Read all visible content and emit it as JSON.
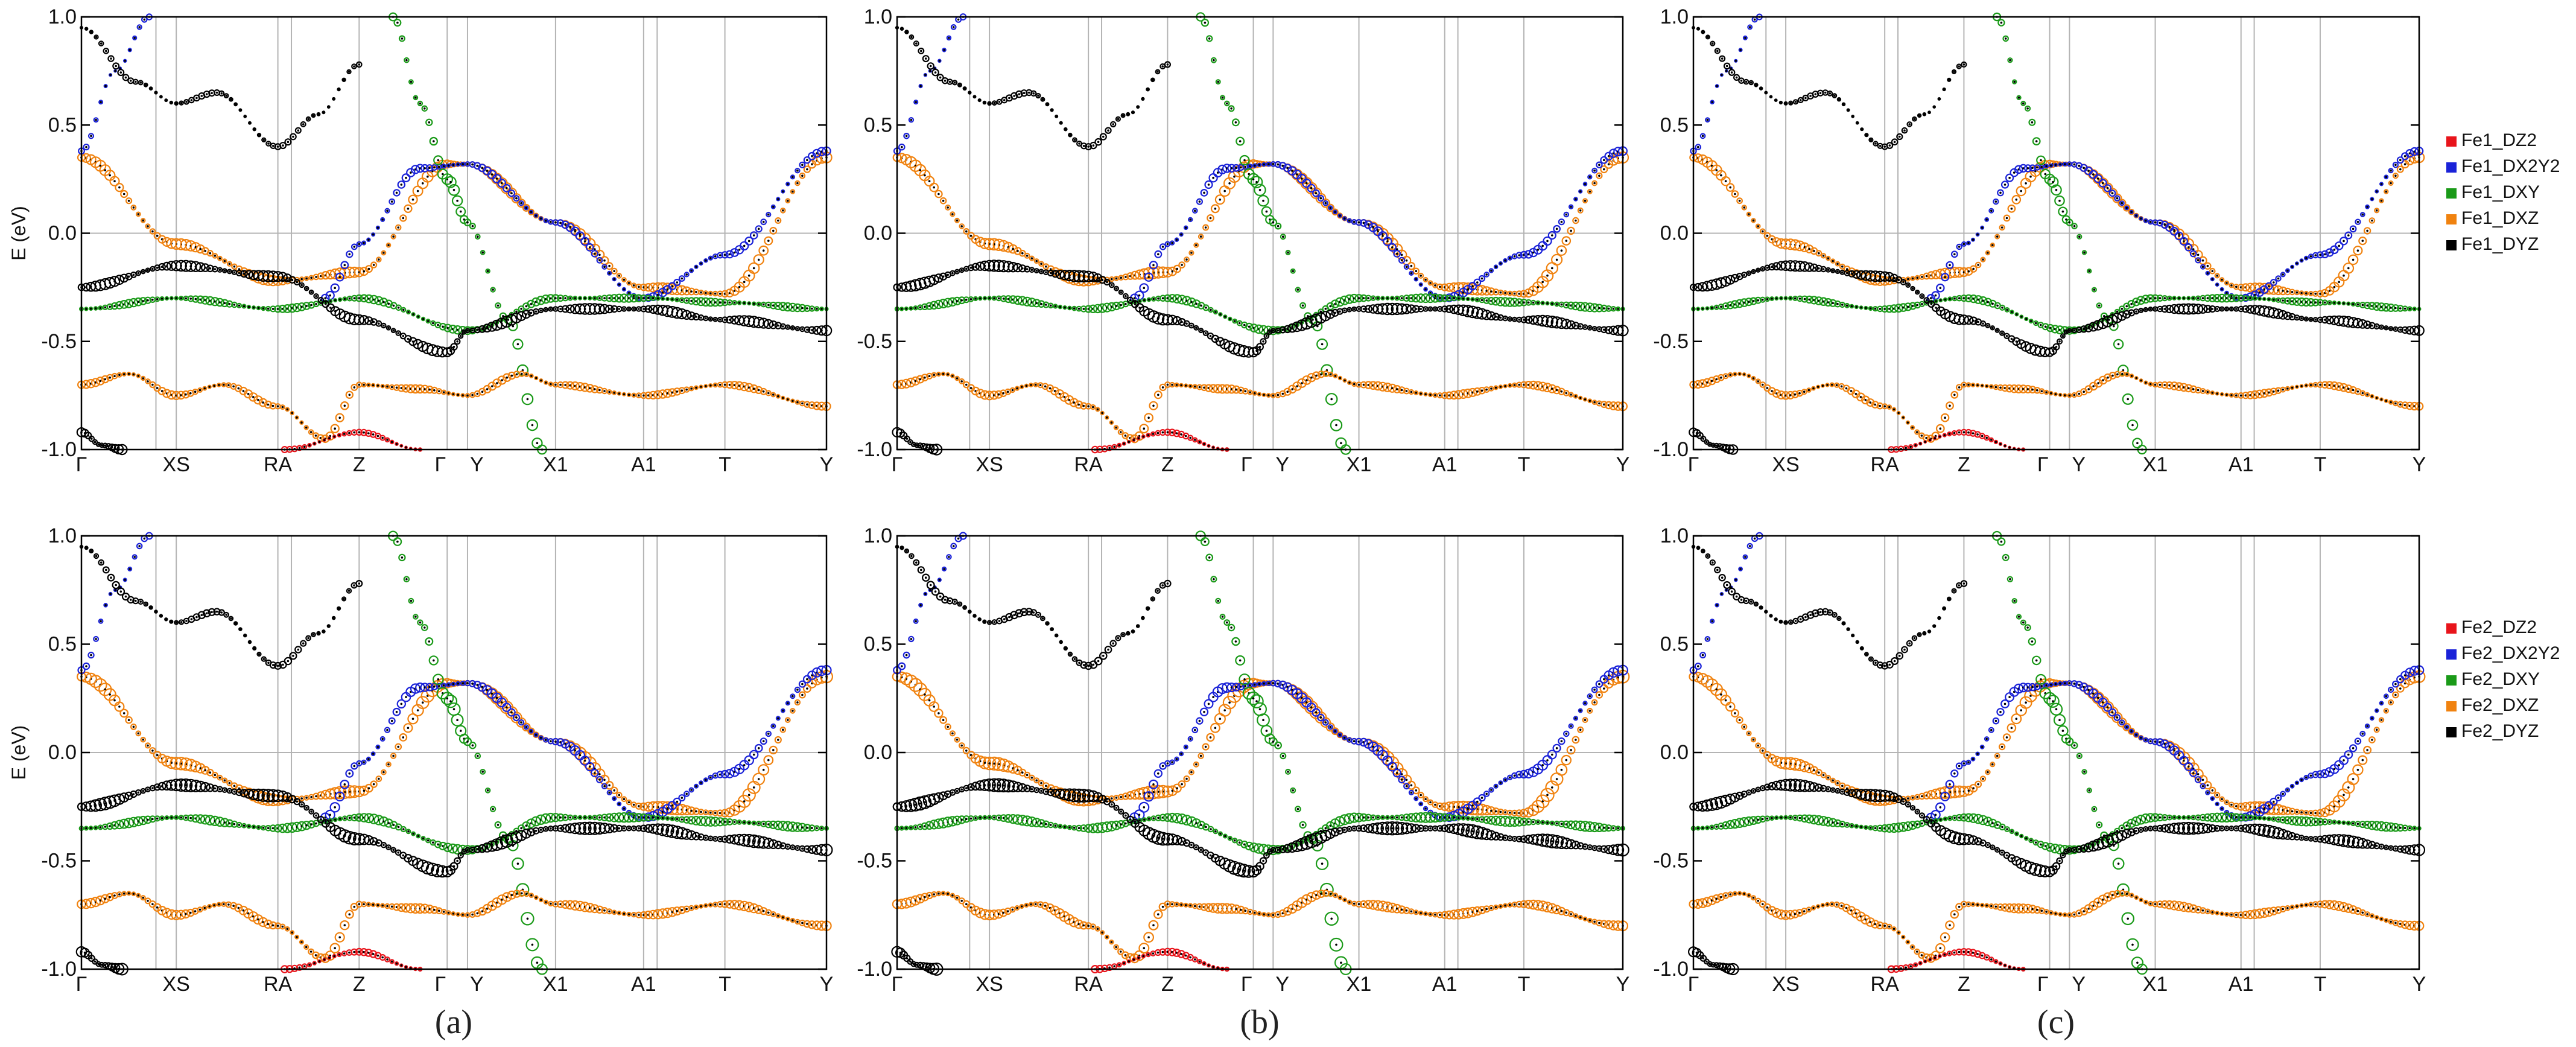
{
  "chart_data": {
    "type": "scatter",
    "description_kind": "fat-band electronic structure",
    "ylabel": "E (eV)",
    "ylim": [
      -1.0,
      1.0
    ],
    "yticks": [
      -1.0,
      -0.5,
      0.0,
      0.5,
      1.0
    ],
    "ytick_labels": [
      "-1.0",
      "-0.5",
      "0.0",
      "0.5",
      "1.0"
    ],
    "kpath": [
      {
        "label": "Γ",
        "x": 0.0
      },
      {
        "label": "XS",
        "x": 1.4
      },
      {
        "label": "RA",
        "x": 2.9
      },
      {
        "label": "Z",
        "x": 4.1
      },
      {
        "label": "Γ",
        "x": 5.4
      },
      {
        "label": "Y",
        "x": 5.7
      },
      {
        "label": "X1",
        "x": 7.0
      },
      {
        "label": "A1",
        "x": 8.3
      },
      {
        "label": "T",
        "x": 9.5
      },
      {
        "label": "Y",
        "x": 11.0
      }
    ],
    "k_gridlines": [
      0.0,
      1.1,
      1.4,
      2.9,
      3.1,
      4.1,
      5.4,
      5.7,
      7.0,
      8.3,
      8.5,
      9.5,
      11.0
    ],
    "captions": [
      "(a)",
      "(b)",
      "(c)"
    ],
    "legends": [
      {
        "row": 0,
        "entries": [
          {
            "label": "Fe1_DZ2",
            "color": "#e8141b"
          },
          {
            "label": "Fe1_DX2Y2",
            "color": "#1a22d8"
          },
          {
            "label": "Fe1_DXY",
            "color": "#1a9a18"
          },
          {
            "label": "Fe1_DXZ",
            "color": "#f0820f"
          },
          {
            "label": "Fe1_DYZ",
            "color": "#000000"
          }
        ]
      },
      {
        "row": 1,
        "entries": [
          {
            "label": "Fe2_DZ2",
            "color": "#e8141b"
          },
          {
            "label": "Fe2_DX2Y2",
            "color": "#1a22d8"
          },
          {
            "label": "Fe2_DXY",
            "color": "#1a9a18"
          },
          {
            "label": "Fe2_DXZ",
            "color": "#f0820f"
          },
          {
            "label": "Fe2_DYZ",
            "color": "#000000"
          }
        ]
      }
    ],
    "bands_approx": [
      {
        "name": "orange-crossing",
        "orbital": "DXZ",
        "k": [
          0.0,
          1.4,
          2.9,
          4.1,
          5.4,
          5.7,
          7.0,
          8.3,
          9.5,
          11.0
        ],
        "E": [
          0.35,
          -0.05,
          -0.22,
          -0.18,
          0.32,
          0.32,
          0.05,
          -0.25,
          -0.28,
          0.35
        ]
      },
      {
        "name": "blue-rising",
        "orbital": "DX2Y2",
        "k": [
          3.6,
          4.1,
          5.0,
          5.7,
          7.0,
          8.3,
          9.5,
          11.0
        ],
        "E": [
          -0.3,
          -0.05,
          0.3,
          0.32,
          0.05,
          -0.3,
          -0.1,
          0.38
        ]
      },
      {
        "name": "blue-upper",
        "orbital": "DX2Y2",
        "k": [
          0.0,
          0.5,
          1.0
        ],
        "E": [
          0.38,
          0.75,
          1.0
        ]
      },
      {
        "name": "green-steep",
        "orbital": "DXY",
        "k": [
          4.6,
          5.0,
          5.4,
          5.7,
          6.3,
          6.8
        ],
        "E": [
          1.0,
          0.6,
          0.25,
          0.05,
          -0.4,
          -1.0
        ]
      },
      {
        "name": "green-flat",
        "orbital": "DXY",
        "k": [
          0.0,
          1.4,
          2.9,
          4.1,
          5.7,
          7.0,
          8.3,
          9.5,
          11.0
        ],
        "E": [
          -0.35,
          -0.3,
          -0.35,
          -0.3,
          -0.45,
          -0.3,
          -0.3,
          -0.32,
          -0.35
        ]
      },
      {
        "name": "black-upper",
        "orbital": "DYZ",
        "k": [
          0.0,
          0.8,
          1.4,
          2.0,
          2.9,
          3.5,
          4.1
        ],
        "E": [
          0.95,
          0.7,
          0.6,
          0.65,
          0.4,
          0.55,
          0.78
        ]
      },
      {
        "name": "black-mid",
        "orbital": "DYZ",
        "k": [
          0.0,
          1.4,
          2.9,
          4.1,
          5.4,
          5.7,
          7.0,
          8.3,
          9.5,
          11.0
        ],
        "E": [
          -0.25,
          -0.15,
          -0.2,
          -0.4,
          -0.55,
          -0.45,
          -0.35,
          -0.35,
          -0.4,
          -0.45
        ]
      },
      {
        "name": "orange-lower",
        "orbital": "DXZ",
        "k": [
          0.0,
          0.7,
          1.4,
          2.1,
          2.9,
          3.6,
          4.1,
          5.0,
          5.7,
          6.5,
          7.0,
          8.3,
          9.5,
          11.0
        ],
        "E": [
          -0.7,
          -0.65,
          -0.75,
          -0.7,
          -0.8,
          -0.95,
          -0.7,
          -0.72,
          -0.75,
          -0.65,
          -0.7,
          -0.75,
          -0.7,
          -0.8
        ]
      },
      {
        "name": "red-low",
        "orbital": "DZ2",
        "k": [
          3.0,
          4.1,
          5.0
        ],
        "E": [
          -1.0,
          -0.92,
          -1.0
        ]
      },
      {
        "name": "black-bottom",
        "orbital": "DYZ",
        "k": [
          0.0,
          0.3,
          0.6
        ],
        "E": [
          -0.92,
          -0.98,
          -1.0
        ]
      }
    ]
  }
}
